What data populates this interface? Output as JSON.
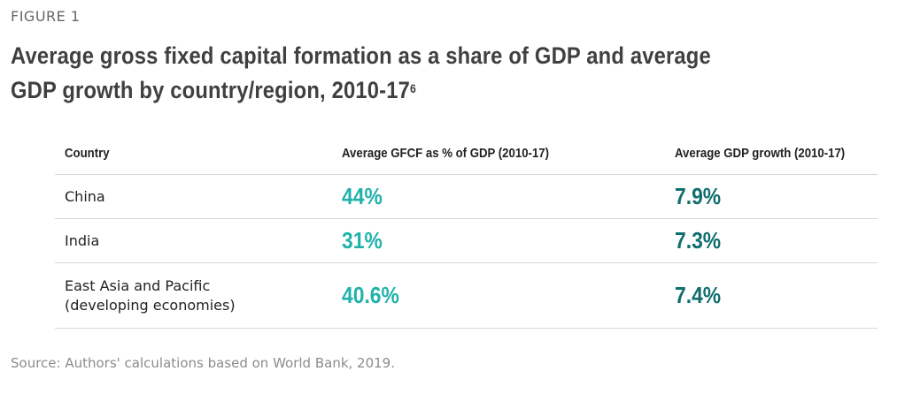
{
  "figure_label": "FIGURE 1",
  "title": "Average gross fixed capital formation as a share of GDP and average GDP growth by country/region, 2010-17",
  "title_footnote": "6",
  "source": "Source: Authors' calculations based on World Bank, 2019.",
  "colors": {
    "gfcf_value": "#20b2aa",
    "gdp_value": "#0f6e6e",
    "title": "#404040",
    "rule": "#d6d6d6"
  },
  "chart_data": {
    "type": "table",
    "columns": [
      "Country",
      "Average GFCF as % of GDP (2010-17)",
      "Average GDP growth (2010-17)"
    ],
    "rows": [
      {
        "country": [
          "China"
        ],
        "gfcf": "44%",
        "gdp_growth": "7.9%"
      },
      {
        "country": [
          "India"
        ],
        "gfcf": "31%",
        "gdp_growth": "7.3%"
      },
      {
        "country": [
          "East Asia and Pacific",
          "(developing economies)"
        ],
        "gfcf": "40.6%",
        "gdp_growth": "7.4%"
      }
    ],
    "values": {
      "gfcf_pct": [
        44,
        31,
        40.6
      ],
      "gdp_growth_pct": [
        7.9,
        7.3,
        7.4
      ]
    }
  }
}
